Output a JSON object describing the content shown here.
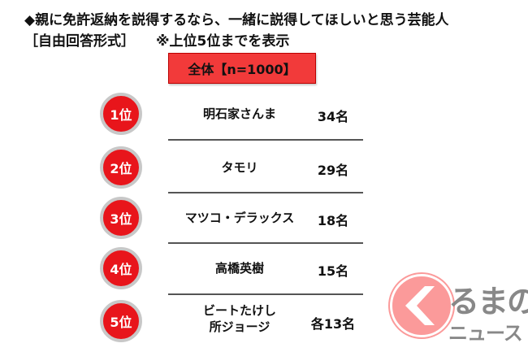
{
  "title": "◆親に免許返納を説得するなら、一緒に説得してほしいと思う芸能人",
  "subtitle": "［自由回答形式］",
  "note": "※上位5位までを表示",
  "total_label": "全体【n=1000】",
  "rows": [
    {
      "rank": "1位",
      "name": "明石家さんま",
      "count": "34名"
    },
    {
      "rank": "2位",
      "name": "タモリ",
      "count": "29名"
    },
    {
      "rank": "3位",
      "name": "マツコ・デラックス",
      "count": "18名"
    },
    {
      "rank": "4位",
      "name": "高橋英樹",
      "count": "15名"
    },
    {
      "rank": "5位",
      "name": "ビートたけし\n所ジョージ",
      "name1": "ビートたけし",
      "name2": "所ジョージ",
      "count": "各13名"
    }
  ],
  "logo": {
    "text1": "るまの",
    "text2": "ニュース",
    "icon": "chevron-left-icon"
  },
  "colors": {
    "accent": "#e8151b",
    "header": "#f23a3a",
    "logo": "#fb9a9a"
  }
}
